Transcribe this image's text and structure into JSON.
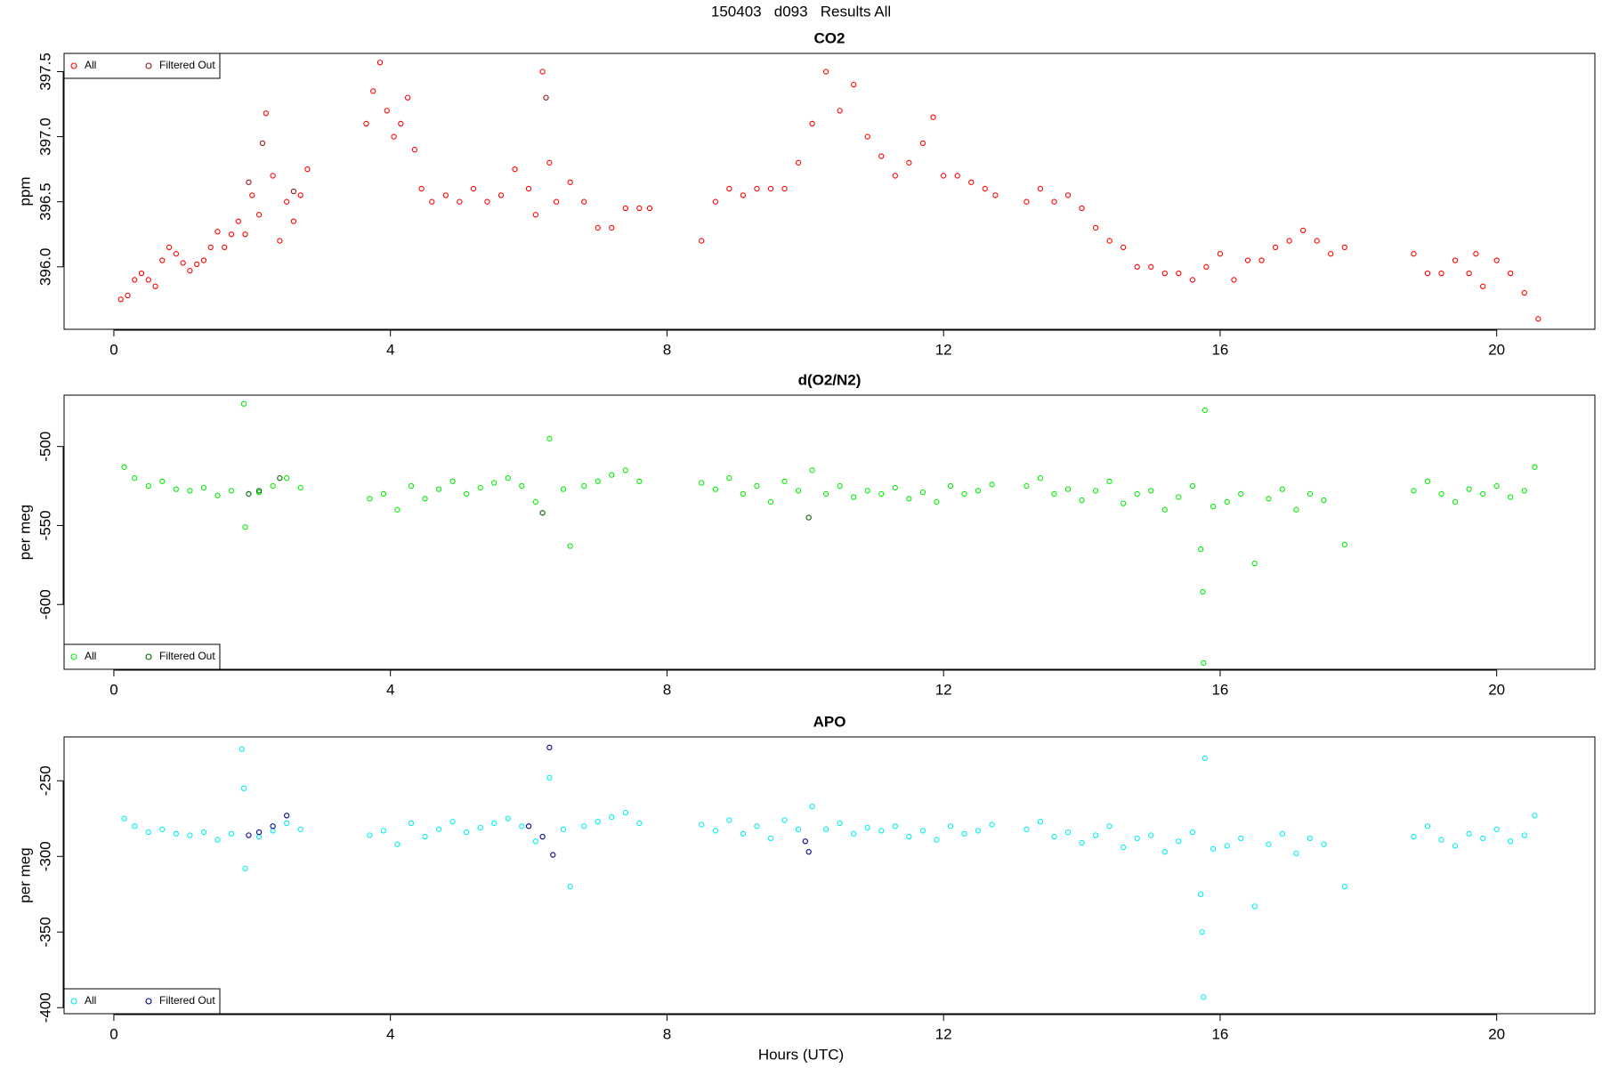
{
  "title": "150403   d093   Results All",
  "xlabel": "Hours (UTC)",
  "chart_data": [
    {
      "type": "scatter",
      "title": "CO2",
      "ylabel": "ppm",
      "xlim": [
        -0.72,
        21.42
      ],
      "xticks": [
        0,
        4,
        8,
        12,
        16,
        20
      ],
      "ylim": [
        395.52,
        397.64
      ],
      "yticks": [
        {
          "value": 396,
          "label": "396.0"
        },
        396.5,
        {
          "value": 397,
          "label": "397.0"
        },
        397.5
      ],
      "legend": "topleft",
      "series": [
        {
          "name": "All",
          "color": "#ff0000",
          "x": [
            0.1,
            0.2,
            0.3,
            0.4,
            0.5,
            0.6,
            0.7,
            0.8,
            0.9,
            1.0,
            1.1,
            1.2,
            1.3,
            1.4,
            1.5,
            1.6,
            1.7,
            1.8,
            1.9,
            2.0,
            2.1,
            2.2,
            2.3,
            2.4,
            2.5,
            2.6,
            2.7,
            2.8,
            3.65,
            3.75,
            3.85,
            3.95,
            4.05,
            4.15,
            4.25,
            4.35,
            4.45,
            4.6,
            4.8,
            5.0,
            5.2,
            5.4,
            5.6,
            5.8,
            6.0,
            6.1,
            6.2,
            6.3,
            6.4,
            6.6,
            6.8,
            7.0,
            7.2,
            7.4,
            7.6,
            7.75,
            8.5,
            8.7,
            8.9,
            9.1,
            9.3,
            9.5,
            9.7,
            9.9,
            10.1,
            10.3,
            10.5,
            10.7,
            10.9,
            11.1,
            11.3,
            11.5,
            11.7,
            11.85,
            12.0,
            12.2,
            12.4,
            12.6,
            12.75,
            13.2,
            13.4,
            13.6,
            13.8,
            14.0,
            14.2,
            14.4,
            14.6,
            14.8,
            15.0,
            15.2,
            15.4,
            15.6,
            15.8,
            16.0,
            16.2,
            16.4,
            16.6,
            16.8,
            17.0,
            17.2,
            17.4,
            17.6,
            17.8,
            18.8,
            19.0,
            19.2,
            19.4,
            19.6,
            19.7,
            19.8,
            20.0,
            20.2,
            20.4,
            20.6
          ],
          "values": [
            395.75,
            395.78,
            395.9,
            395.95,
            395.9,
            395.85,
            396.05,
            396.15,
            396.1,
            396.03,
            395.97,
            396.02,
            396.05,
            396.15,
            396.27,
            396.15,
            396.25,
            396.35,
            396.25,
            396.55,
            396.4,
            397.18,
            396.7,
            396.2,
            396.5,
            396.35,
            396.55,
            396.75,
            397.1,
            397.35,
            397.57,
            397.2,
            397.0,
            397.1,
            397.3,
            396.9,
            396.6,
            396.5,
            396.55,
            396.5,
            396.6,
            396.5,
            396.55,
            396.75,
            396.6,
            396.4,
            397.5,
            396.8,
            396.5,
            396.65,
            396.5,
            396.3,
            396.3,
            396.45,
            396.45,
            396.45,
            396.2,
            396.5,
            396.6,
            396.55,
            396.6,
            396.6,
            396.6,
            396.8,
            397.1,
            397.5,
            397.2,
            397.4,
            397.0,
            396.85,
            396.7,
            396.8,
            396.95,
            397.15,
            396.7,
            396.7,
            396.65,
            396.6,
            396.55,
            396.5,
            396.6,
            396.5,
            396.55,
            396.45,
            396.3,
            396.2,
            396.15,
            396.0,
            396.0,
            395.95,
            395.95,
            395.9,
            396.0,
            396.1,
            395.9,
            396.05,
            396.05,
            396.15,
            396.2,
            396.28,
            396.2,
            396.1,
            396.15,
            396.1,
            395.95,
            395.95,
            396.05,
            395.95,
            396.1,
            395.85,
            396.05,
            395.95,
            395.8,
            395.6
          ]
        },
        {
          "name": "Filtered Out",
          "color": "#8b1a1a",
          "x": [
            1.95,
            2.15,
            2.6,
            6.25
          ],
          "values": [
            396.65,
            396.95,
            396.58,
            397.3
          ]
        }
      ]
    },
    {
      "type": "scatter",
      "title": "d(O2/N2)",
      "ylabel": "per meg",
      "xlim": [
        -0.72,
        21.42
      ],
      "xticks": [
        0,
        4,
        8,
        12,
        16,
        20
      ],
      "ylim": [
        -641,
        -467.5
      ],
      "yticks": [
        -600,
        -550,
        -500
      ],
      "legend": "bottomleft",
      "series": [
        {
          "name": "All",
          "color": "#00ee00",
          "x": [
            0.15,
            0.3,
            0.5,
            0.7,
            0.9,
            1.1,
            1.3,
            1.5,
            1.7,
            1.88,
            1.9,
            2.1,
            2.3,
            2.5,
            2.7,
            3.7,
            3.9,
            4.1,
            4.3,
            4.5,
            4.7,
            4.9,
            5.1,
            5.3,
            5.5,
            5.7,
            5.9,
            6.1,
            6.3,
            6.5,
            6.6,
            6.8,
            7.0,
            7.2,
            7.4,
            7.6,
            8.5,
            8.7,
            8.9,
            9.1,
            9.3,
            9.5,
            9.7,
            9.9,
            10.1,
            10.3,
            10.5,
            10.7,
            10.9,
            11.1,
            11.3,
            11.5,
            11.7,
            11.9,
            12.1,
            12.3,
            12.5,
            12.7,
            13.2,
            13.4,
            13.6,
            13.8,
            14.0,
            14.2,
            14.4,
            14.6,
            14.8,
            15.0,
            15.2,
            15.4,
            15.6,
            15.72,
            15.75,
            15.76,
            15.78,
            15.9,
            16.1,
            16.3,
            16.5,
            16.7,
            16.9,
            17.1,
            17.3,
            17.5,
            17.8,
            18.8,
            19.0,
            19.2,
            19.4,
            19.6,
            19.8,
            20.0,
            20.2,
            20.4,
            20.55
          ],
          "values": [
            -513,
            -520,
            -525,
            -522,
            -527,
            -528,
            -526,
            -531,
            -528,
            -473,
            -551,
            -529,
            -525,
            -520,
            -526,
            -533,
            -530,
            -540,
            -525,
            -533,
            -527,
            -522,
            -530,
            -526,
            -523,
            -520,
            -525,
            -535,
            -495,
            -527,
            -563,
            -525,
            -522,
            -518,
            -515,
            -522,
            -523,
            -527,
            -520,
            -530,
            -525,
            -535,
            -522,
            -528,
            -515,
            -530,
            -525,
            -532,
            -528,
            -530,
            -526,
            -533,
            -529,
            -535,
            -525,
            -530,
            -528,
            -524,
            -525,
            -520,
            -530,
            -527,
            -534,
            -528,
            -522,
            -536,
            -530,
            -528,
            -540,
            -532,
            -525,
            -565,
            -592,
            -637,
            -477,
            -538,
            -535,
            -530,
            -574,
            -533,
            -527,
            -540,
            -530,
            -534,
            -562,
            -528,
            -522,
            -530,
            -535,
            -527,
            -530,
            -525,
            -532,
            -528,
            -513
          ]
        },
        {
          "name": "Filtered Out",
          "color": "#006400",
          "x": [
            1.95,
            2.1,
            2.4,
            6.2,
            10.05
          ],
          "values": [
            -530,
            -528,
            -520,
            -542,
            -545
          ]
        }
      ]
    },
    {
      "type": "scatter",
      "title": "APO",
      "ylabel": "per meg",
      "xlim": [
        -0.72,
        21.42
      ],
      "xticks": [
        0,
        4,
        8,
        12,
        16,
        20
      ],
      "ylim": [
        -404,
        -221
      ],
      "yticks": [
        -400,
        -350,
        -300,
        -250
      ],
      "legend": "bottomleft",
      "series": [
        {
          "name": "All",
          "color": "#00eeee",
          "x": [
            0.15,
            0.3,
            0.5,
            0.7,
            0.9,
            1.1,
            1.3,
            1.5,
            1.7,
            1.85,
            1.88,
            1.9,
            2.1,
            2.3,
            2.5,
            2.7,
            3.7,
            3.9,
            4.1,
            4.3,
            4.5,
            4.7,
            4.9,
            5.1,
            5.3,
            5.5,
            5.7,
            5.9,
            6.1,
            6.3,
            6.5,
            6.6,
            6.8,
            7.0,
            7.2,
            7.4,
            7.6,
            8.5,
            8.7,
            8.9,
            9.1,
            9.3,
            9.5,
            9.7,
            9.9,
            10.1,
            10.3,
            10.5,
            10.7,
            10.9,
            11.1,
            11.3,
            11.5,
            11.7,
            11.9,
            12.1,
            12.3,
            12.5,
            12.7,
            13.2,
            13.4,
            13.6,
            13.8,
            14.0,
            14.2,
            14.4,
            14.6,
            14.8,
            15.0,
            15.2,
            15.4,
            15.6,
            15.72,
            15.74,
            15.76,
            15.78,
            15.9,
            16.1,
            16.3,
            16.5,
            16.7,
            16.9,
            17.1,
            17.3,
            17.5,
            17.8,
            18.8,
            19.0,
            19.2,
            19.4,
            19.6,
            19.8,
            20.0,
            20.2,
            20.4,
            20.55
          ],
          "values": [
            -275,
            -280,
            -284,
            -282,
            -285,
            -286,
            -284,
            -289,
            -285,
            -229,
            -255,
            -308,
            -287,
            -283,
            -278,
            -282,
            -286,
            -283,
            -292,
            -278,
            -287,
            -282,
            -277,
            -284,
            -281,
            -278,
            -275,
            -280,
            -290,
            -248,
            -282,
            -320,
            -280,
            -277,
            -274,
            -271,
            -278,
            -279,
            -283,
            -276,
            -285,
            -280,
            -288,
            -276,
            -282,
            -267,
            -282,
            -278,
            -285,
            -281,
            -283,
            -280,
            -287,
            -283,
            -289,
            -280,
            -285,
            -283,
            -279,
            -282,
            -277,
            -287,
            -284,
            -291,
            -286,
            -280,
            -294,
            -288,
            -286,
            -297,
            -290,
            -284,
            -325,
            -350,
            -393,
            -235,
            -295,
            -293,
            -288,
            -333,
            -292,
            -285,
            -298,
            -288,
            -292,
            -320,
            -287,
            -280,
            -289,
            -293,
            -285,
            -288,
            -282,
            -290,
            -286,
            -273
          ]
        },
        {
          "name": "Filtered Out",
          "color": "#00008b",
          "x": [
            1.95,
            2.1,
            2.3,
            2.5,
            6.0,
            6.2,
            6.3,
            6.35,
            10.0,
            10.05
          ],
          "values": [
            -286,
            -284,
            -280,
            -273,
            -280,
            -287,
            -228,
            -299,
            -290,
            -297
          ]
        }
      ]
    }
  ]
}
